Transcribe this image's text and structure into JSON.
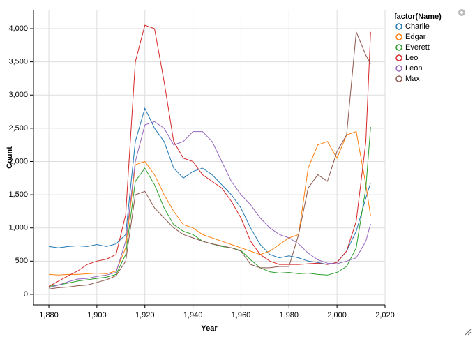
{
  "chart_data": {
    "type": "line",
    "x_label": "Year",
    "y_label": "Count",
    "legend_title": "factor(Name)",
    "x": [
      1880,
      1884,
      1888,
      1892,
      1896,
      1900,
      1904,
      1908,
      1912,
      1916,
      1920,
      1924,
      1928,
      1932,
      1936,
      1940,
      1944,
      1948,
      1952,
      1956,
      1960,
      1964,
      1968,
      1972,
      1976,
      1980,
      1984,
      1988,
      1992,
      1996,
      2000,
      2004,
      2008,
      2012,
      2014
    ],
    "series": [
      {
        "name": "Charlie",
        "color": "#1f77b4",
        "values": [
          720,
          700,
          720,
          730,
          720,
          750,
          720,
          760,
          900,
          2300,
          2800,
          2500,
          2300,
          1900,
          1750,
          1850,
          1900,
          1800,
          1650,
          1500,
          1300,
          1000,
          750,
          600,
          550,
          580,
          550,
          500,
          480,
          450,
          480,
          650,
          950,
          1450,
          1680
        ]
      },
      {
        "name": "Edgar",
        "color": "#ff7f0e",
        "values": [
          300,
          290,
          300,
          300,
          310,
          320,
          310,
          350,
          700,
          1950,
          2000,
          1800,
          1500,
          1250,
          1050,
          1000,
          900,
          850,
          800,
          750,
          700,
          650,
          600,
          650,
          750,
          850,
          900,
          1900,
          2250,
          2300,
          2050,
          2400,
          2450,
          1650,
          1180
        ]
      },
      {
        "name": "Everett",
        "color": "#2ca02c",
        "values": [
          120,
          140,
          170,
          200,
          220,
          240,
          260,
          300,
          600,
          1700,
          1900,
          1650,
          1300,
          1050,
          950,
          900,
          800,
          760,
          720,
          700,
          660,
          520,
          400,
          340,
          320,
          330,
          310,
          320,
          300,
          290,
          330,
          420,
          700,
          1600,
          2520
        ]
      },
      {
        "name": "Leo",
        "color": "#d62728",
        "values": [
          120,
          200,
          280,
          350,
          450,
          500,
          530,
          600,
          1200,
          3500,
          4050,
          4000,
          3200,
          2300,
          2050,
          2000,
          1800,
          1700,
          1600,
          1400,
          1150,
          800,
          600,
          500,
          450,
          450,
          450,
          460,
          470,
          450,
          480,
          650,
          1100,
          2300,
          3950
        ]
      },
      {
        "name": "Leon",
        "color": "#9467bd",
        "values": [
          100,
          140,
          190,
          230,
          240,
          270,
          290,
          330,
          800,
          2000,
          2550,
          2600,
          2500,
          2250,
          2300,
          2450,
          2450,
          2300,
          2000,
          1700,
          1500,
          1350,
          1150,
          1000,
          900,
          850,
          760,
          620,
          520,
          470,
          460,
          500,
          550,
          800,
          1060
        ]
      },
      {
        "name": "Max",
        "color": "#8c564b",
        "values": [
          80,
          100,
          110,
          130,
          140,
          180,
          220,
          280,
          500,
          1500,
          1550,
          1300,
          1150,
          1000,
          900,
          850,
          800,
          760,
          730,
          700,
          650,
          450,
          400,
          400,
          420,
          420,
          900,
          1600,
          1800,
          1700,
          2150,
          2400,
          3950,
          3600,
          3470
        ]
      }
    ],
    "xlim": [
      1873.6,
      2020
    ],
    "xticks": [
      {
        "value": 1880,
        "label": "1,880"
      },
      {
        "value": 1900,
        "label": "1,900"
      },
      {
        "value": 1920,
        "label": "1,920"
      },
      {
        "value": 1940,
        "label": "1,940"
      },
      {
        "value": 1960,
        "label": "1,960"
      },
      {
        "value": 1980,
        "label": "1,980"
      },
      {
        "value": 2000,
        "label": "2,000"
      },
      {
        "value": 2020,
        "label": "2,020"
      }
    ],
    "ylim": [
      -158,
      4273
    ],
    "yticks": [
      0,
      500,
      {
        "value": 1000,
        "label": "1,000"
      },
      {
        "value": 1500,
        "label": "1,500"
      },
      {
        "value": 2000,
        "label": "2,000"
      },
      {
        "value": 2500,
        "label": "2,500"
      },
      {
        "value": 3000,
        "label": "3,000"
      },
      {
        "value": 3500,
        "label": "3,500"
      },
      {
        "value": 4000,
        "label": "4,000"
      }
    ],
    "grid": true,
    "legend_position": "top-right"
  }
}
